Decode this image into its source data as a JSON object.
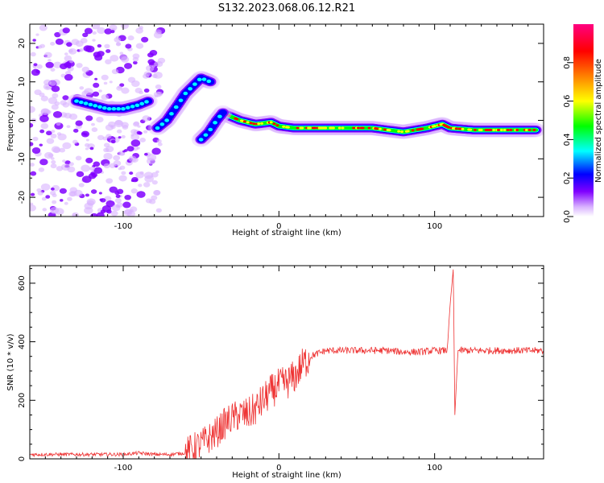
{
  "figure": {
    "title": "S132.2023.068.06.12.R21"
  },
  "chart_data": [
    {
      "type": "heatmap",
      "xlabel": "Height of straight line (km)",
      "ylabel": "Frequency (Hz)",
      "xlim": [
        -160,
        170
      ],
      "ylim": [
        -25,
        25
      ],
      "xticks": [
        -100,
        0,
        100
      ],
      "xtick_labels": [
        "-100",
        "0",
        "100"
      ],
      "yticks": [
        -20,
        -10,
        0,
        10,
        20
      ],
      "ytick_labels": [
        "-20",
        "-10",
        "0",
        "10",
        "20"
      ],
      "colorbar": {
        "label": "Normalized spectral amplitude",
        "range": [
          0,
          1
        ],
        "ticks": [
          0.0,
          0.2,
          0.4,
          0.6,
          0.8
        ],
        "tick_labels": [
          "0.0",
          "0.2",
          "0.4",
          "0.6",
          "0.8"
        ],
        "colormap": [
          "#ffffff",
          "#8000ff",
          "#0000ff",
          "#00ffff",
          "#00ff00",
          "#ffff00",
          "#ff8000",
          "#ff0000",
          "#ff0080"
        ]
      },
      "ridges": [
        {
          "name": "main-trace",
          "points": [
            [
              -34,
              1.5
            ],
            [
              -25,
              0
            ],
            [
              -15,
              -1
            ],
            [
              -5,
              -0.5
            ],
            [
              0,
              -1.5
            ],
            [
              10,
              -2
            ],
            [
              20,
              -2
            ],
            [
              40,
              -2
            ],
            [
              60,
              -2
            ],
            [
              80,
              -3
            ],
            [
              95,
              -2
            ],
            [
              105,
              -1
            ],
            [
              110,
              -2
            ],
            [
              125,
              -2.5
            ],
            [
              145,
              -2.5
            ],
            [
              165,
              -2.5
            ]
          ]
        },
        {
          "name": "upper-left-trace",
          "points": [
            [
              -78,
              -2
            ],
            [
              -72,
              0
            ],
            [
              -65,
              4
            ],
            [
              -60,
              7
            ],
            [
              -55,
              9
            ],
            [
              -50,
              11
            ],
            [
              -44,
              10
            ]
          ]
        },
        {
          "name": "diagonal-trace",
          "points": [
            [
              -50,
              -5
            ],
            [
              -45,
              -3
            ],
            [
              -40,
              0
            ],
            [
              -36,
              2
            ]
          ]
        },
        {
          "name": "left-cluster",
          "points": [
            [
              -130,
              5
            ],
            [
              -120,
              4
            ],
            [
              -110,
              3
            ],
            [
              -100,
              3
            ],
            [
              -90,
              4
            ],
            [
              -84,
              5
            ]
          ]
        }
      ],
      "grid": false
    },
    {
      "type": "line",
      "xlabel": "Height of straight line (km)",
      "ylabel": "SNR (10 * v/v)",
      "xlim": [
        -160,
        170
      ],
      "ylim": [
        0,
        660
      ],
      "xticks": [
        -100,
        0,
        100
      ],
      "xtick_labels": [
        "-100",
        "0",
        "100"
      ],
      "yticks": [
        0,
        200,
        400,
        600
      ],
      "ytick_labels": [
        "0",
        "200",
        "400",
        "600"
      ],
      "line_color": "#ee3333",
      "series": [
        {
          "x": [
            -160,
            -140,
            -120,
            -100,
            -90,
            -80,
            -70,
            -60,
            -50,
            -40,
            -35,
            -30,
            -25,
            -20,
            -15,
            -10,
            -5,
            0,
            5,
            10,
            15,
            20,
            25,
            30,
            40,
            50,
            60,
            70,
            80,
            90,
            100,
            108,
            110,
            112,
            113,
            115,
            120,
            130,
            140,
            150,
            160,
            170
          ],
          "values": [
            15,
            15,
            15,
            15,
            20,
            15,
            15,
            20,
            50,
            90,
            120,
            140,
            150,
            150,
            170,
            200,
            230,
            250,
            260,
            280,
            320,
            350,
            360,
            370,
            370,
            370,
            370,
            370,
            365,
            365,
            370,
            370,
            530,
            650,
            150,
            370,
            370,
            370,
            370,
            370,
            370,
            370
          ]
        }
      ],
      "grid": false
    }
  ]
}
